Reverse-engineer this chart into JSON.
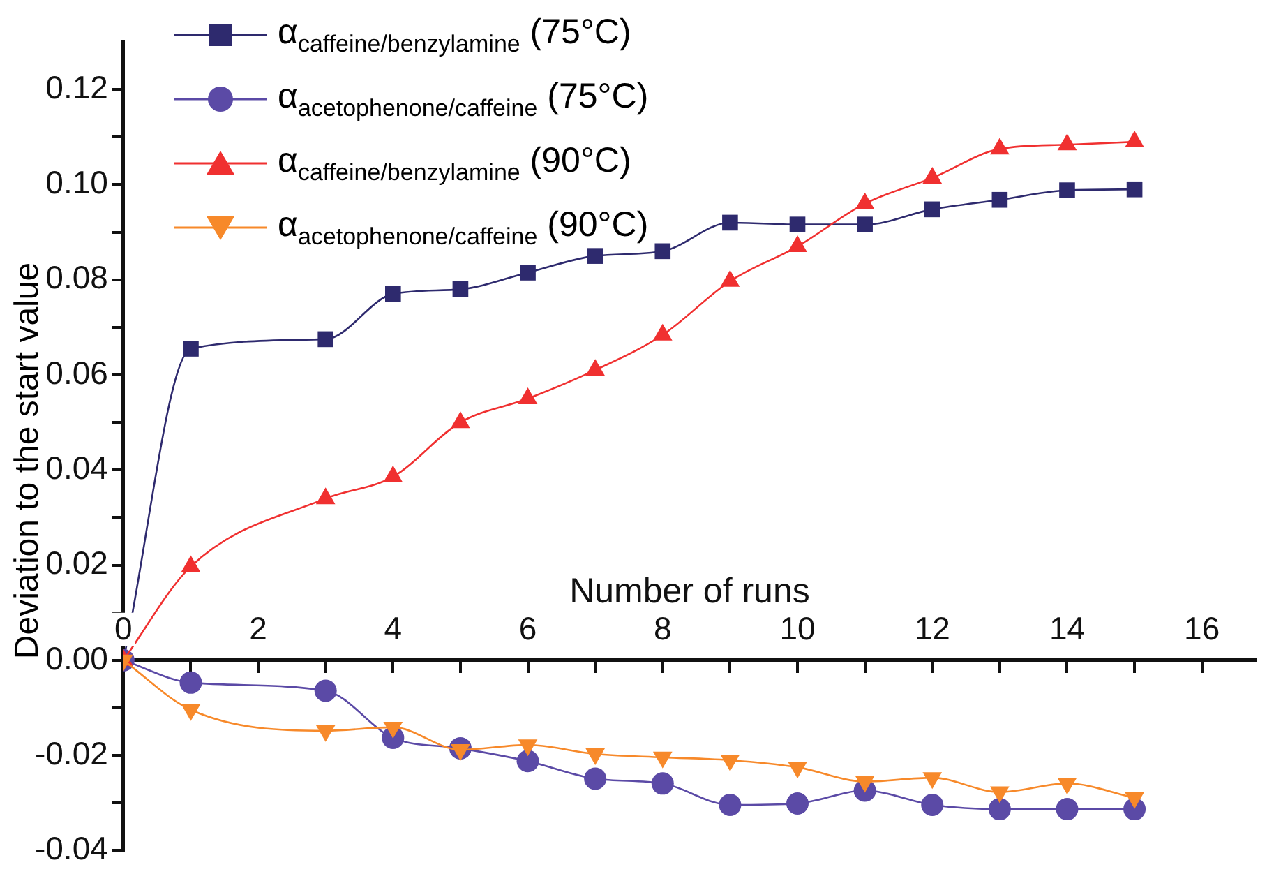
{
  "chart_data": {
    "type": "line",
    "xlabel": "Number of runs",
    "ylabel": "Deviation to the start value",
    "x": [
      0,
      1,
      3,
      4,
      5,
      6,
      7,
      8,
      9,
      10,
      11,
      12,
      13,
      14,
      15
    ],
    "series": [
      {
        "name": "α$_{caffeine/benzylamine}$ (75°C)",
        "color": "#2e2a6e",
        "marker": "square",
        "values": [
          0,
          0.0655,
          0.0675,
          0.077,
          0.078,
          0.0815,
          0.085,
          0.086,
          0.092,
          0.0916,
          0.0916,
          0.0948,
          0.0968,
          0.0988,
          0.099
        ]
      },
      {
        "name": "α$_{acetophenone/caffeine}$ (75°C)",
        "color": "#5b4aa6",
        "marker": "circle",
        "values": [
          0,
          -0.0047,
          -0.0064,
          -0.0163,
          -0.0185,
          -0.0212,
          -0.0249,
          -0.0259,
          -0.0304,
          -0.0301,
          -0.0274,
          -0.0304,
          -0.0313,
          -0.0313,
          -0.0313
        ]
      },
      {
        "name": "α$_{caffeine/benzylamine}$ (90°C)",
        "color": "#f03030",
        "marker": "triangle",
        "values": [
          0,
          0.0197,
          0.034,
          0.0386,
          0.05,
          0.055,
          0.061,
          0.0684,
          0.0797,
          0.087,
          0.096,
          0.1014,
          0.1075,
          0.1084,
          0.109
        ]
      },
      {
        "name": "α$_{acetophenone/caffeine}$ (90°C)",
        "color": "#f7892a",
        "marker": "triangle-down",
        "values": [
          0,
          -0.0104,
          -0.0148,
          -0.0141,
          -0.0188,
          -0.0178,
          -0.0197,
          -0.0204,
          -0.021,
          -0.0225,
          -0.0255,
          -0.0247,
          -0.0277,
          -0.0259,
          -0.0289
        ]
      }
    ],
    "xlim": [
      0,
      16.8
    ],
    "xticks": [
      0,
      {
        "value": 1,
        "label": null
      },
      2,
      {
        "value": 3,
        "label": null
      },
      4,
      {
        "value": 5,
        "label": null
      },
      6,
      {
        "value": 7,
        "label": null
      },
      8,
      {
        "value": 9,
        "label": null
      },
      10,
      {
        "value": 11,
        "label": null
      },
      12,
      {
        "value": 13,
        "label": null
      },
      14,
      {
        "value": 15,
        "label": null
      },
      16
    ],
    "ylim": [
      -0.04,
      0.13
    ],
    "yticks": [
      {
        "value": -0.04,
        "label": "-0.04"
      },
      {
        "value": -0.03,
        "label": null
      },
      {
        "value": -0.02,
        "label": "-0.02"
      },
      {
        "value": -0.01,
        "label": null
      },
      {
        "value": 0,
        "label": "0.00"
      },
      {
        "value": 0.01,
        "label": null
      },
      {
        "value": 0.02,
        "label": "0.02"
      },
      {
        "value": 0.03,
        "label": null
      },
      {
        "value": 0.04,
        "label": "0.04"
      },
      {
        "value": 0.05,
        "label": null
      },
      {
        "value": 0.06,
        "label": "0.06"
      },
      {
        "value": 0.07,
        "label": null
      },
      {
        "value": 0.08,
        "label": "0.08"
      },
      {
        "value": 0.09,
        "label": null
      },
      {
        "value": 0.1,
        "label": "0.10"
      },
      {
        "value": 0.11,
        "label": null
      },
      {
        "value": 0.12,
        "label": "0.12"
      }
    ],
    "grid": false,
    "legend": "top left",
    "line_style": "solid"
  }
}
